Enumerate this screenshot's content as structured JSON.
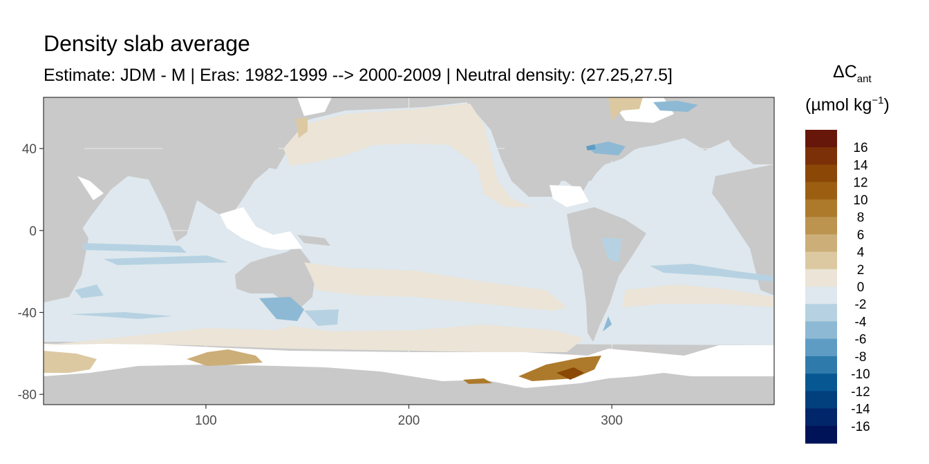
{
  "title": "Density slab average",
  "subtitle": "Estimate: JDM - M | Eras: 1982-1999 --> 2000-2009 | Neutral density: (27.25,27.5]",
  "chart_data": {
    "type": "heatmap",
    "title": "Density slab average",
    "subtitle": "Estimate: JDM - M | Eras: 1982-1999 --> 2000-2009 | Neutral density: (27.25,27.5]",
    "xlabel": "",
    "ylabel": "",
    "xlim": [
      20,
      380
    ],
    "ylim": [
      -85,
      65
    ],
    "x_ticks": [
      100,
      200,
      300
    ],
    "y_ticks": [
      40,
      0,
      -40,
      -80
    ],
    "grid": true,
    "legend": {
      "title_main": "ΔC",
      "title_sub": "ant",
      "units": "(µmol kg",
      "units_exp": "−1",
      "units_close": ")",
      "position": "right",
      "labels": [
        "16",
        "14",
        "12",
        "10",
        "8",
        "6",
        "4",
        "2",
        "0",
        "-2",
        "-4",
        "-6",
        "-8",
        "-10",
        "-12",
        "-14",
        "-16"
      ],
      "colors": [
        "#67160a",
        "#7b3007",
        "#8b4706",
        "#9c5f12",
        "#ad7a2b",
        "#bc934f",
        "#ccae78",
        "#dcc9a2",
        "#ebe4d7",
        "#dfe8ee",
        "#b6d2e2",
        "#8db9d4",
        "#5e9cc4",
        "#2e7bab",
        "#075892",
        "#013f7d",
        "#02266a",
        "#001258"
      ]
    },
    "regions": [
      {
        "name": "ocean-background",
        "value": -0.5
      },
      {
        "name": "north-pacific",
        "value": 0.8
      },
      {
        "name": "south-pacific",
        "value": 0.6
      },
      {
        "name": "southern-ocean-band",
        "value": 1.2
      },
      {
        "name": "indian-ocean-bands",
        "value": -2.5
      },
      {
        "name": "tasman-sea",
        "value": -3.5
      },
      {
        "name": "labrador-sea",
        "value": -4.5
      },
      {
        "name": "weddell-sea",
        "value": 10
      },
      {
        "name": "ross-sea",
        "value": 5
      }
    ]
  }
}
